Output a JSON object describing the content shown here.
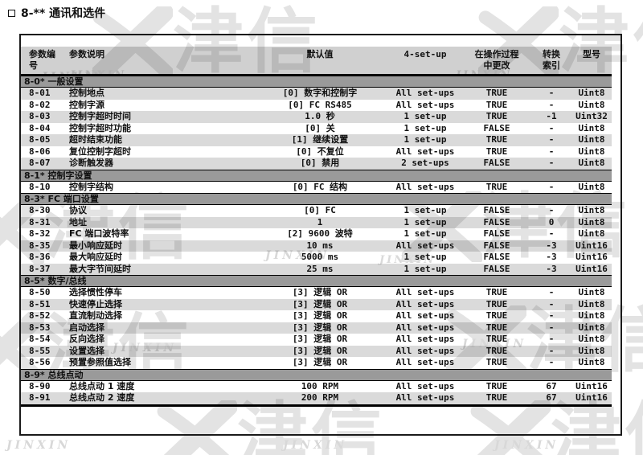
{
  "page_title": {
    "text": "8-** 通讯和选件"
  },
  "watermark": {
    "cjk": "津信",
    "latin": "JINXIN",
    "logo": "jinxin-x-logo"
  },
  "colors": {
    "section_header_bg": "#9a9a9a",
    "column_header_bg": "#cccccc",
    "row_shaded_bg": "#dadada",
    "border": "#000000",
    "watermark": "#e3e3e3"
  },
  "table": {
    "columns": [
      {
        "label": "参数编\n号"
      },
      {
        "label": "参数说明"
      },
      {
        "label": "默认值"
      },
      {
        "label": "4-set-up"
      },
      {
        "label": "在操作过程\n中更改"
      },
      {
        "label": "转换\n索引"
      },
      {
        "label": "型号"
      }
    ],
    "sections": [
      {
        "title": "8-0* 一般设置",
        "rows": [
          {
            "num": "8-01",
            "desc": "控制地点",
            "default": "[0] 数字和控制字",
            "setup": "All set-ups",
            "change": "TRUE",
            "conv": "-",
            "type": "Uint8",
            "shaded": true
          },
          {
            "num": "8-02",
            "desc": "控制字源",
            "default": "[0] FC RS485",
            "setup": "All set-ups",
            "change": "TRUE",
            "conv": "-",
            "type": "Uint8",
            "shaded": false
          },
          {
            "num": "8-03",
            "desc": "控制字超时时间",
            "default": "1.0 秒",
            "setup": "1 set-up",
            "change": "TRUE",
            "conv": "-1",
            "type": "Uint32",
            "shaded": true
          },
          {
            "num": "8-04",
            "desc": "控制字超时功能",
            "default": "[0] 关",
            "setup": "1 set-up",
            "change": "FALSE",
            "conv": "-",
            "type": "Uint8",
            "shaded": false
          },
          {
            "num": "8-05",
            "desc": "超时结束功能",
            "default": "[1] 继续设置",
            "setup": "1 set-up",
            "change": "TRUE",
            "conv": "-",
            "type": "Uint8",
            "shaded": true
          },
          {
            "num": "8-06",
            "desc": "复位控制字超时",
            "default": "[0] 不复位",
            "setup": "All set-ups",
            "change": "TRUE",
            "conv": "-",
            "type": "Uint8",
            "shaded": false
          },
          {
            "num": "8-07",
            "desc": "诊断触发器",
            "default": "[0] 禁用",
            "setup": "2 set-ups",
            "change": "FALSE",
            "conv": "-",
            "type": "Uint8",
            "shaded": true
          }
        ]
      },
      {
        "title": "8-1* 控制字设置",
        "rows": [
          {
            "num": "8-10",
            "desc": "控制字结构",
            "default": "[0] FC 结构",
            "setup": "All set-ups",
            "change": "TRUE",
            "conv": "-",
            "type": "Uint8",
            "shaded": false
          }
        ]
      },
      {
        "title": "8-3* FC 端口设置",
        "rows": [
          {
            "num": "8-30",
            "desc": "协议",
            "default": "[0] FC",
            "setup": "1 set-up",
            "change": "FALSE",
            "conv": "-",
            "type": "Uint8",
            "shaded": false
          },
          {
            "num": "8-31",
            "desc": "地址",
            "default": "1",
            "setup": "1 set-up",
            "change": "FALSE",
            "conv": "0",
            "type": "Uint8",
            "shaded": true
          },
          {
            "num": "8-32",
            "desc": "FC 端口波特率",
            "default": "[2] 9600 波特",
            "setup": "1 set-up",
            "change": "FALSE",
            "conv": "-",
            "type": "Uint8",
            "shaded": false
          },
          {
            "num": "8-35",
            "desc": "最小响应延时",
            "default": "10 ms",
            "setup": "All set-ups",
            "change": "FALSE",
            "conv": "-3",
            "type": "Uint16",
            "shaded": true
          },
          {
            "num": "8-36",
            "desc": "最大响应延时",
            "default": "5000 ms",
            "setup": "1 set-up",
            "change": "FALSE",
            "conv": "-3",
            "type": "Uint16",
            "shaded": false
          },
          {
            "num": "8-37",
            "desc": "最大字节间延时",
            "default": "25 ms",
            "setup": "1 set-up",
            "change": "FALSE",
            "conv": "-3",
            "type": "Uint16",
            "shaded": true
          }
        ]
      },
      {
        "title": "8-5* 数字/总线",
        "rows": [
          {
            "num": "8-50",
            "desc": "选择惯性停车",
            "default": "[3] 逻辑 OR",
            "setup": "All set-ups",
            "change": "TRUE",
            "conv": "-",
            "type": "Uint8",
            "shaded": false
          },
          {
            "num": "8-51",
            "desc": "快速停止选择",
            "default": "[3] 逻辑 OR",
            "setup": "All set-ups",
            "change": "TRUE",
            "conv": "-",
            "type": "Uint8",
            "shaded": true
          },
          {
            "num": "8-52",
            "desc": "直流制动选择",
            "default": "[3] 逻辑 OR",
            "setup": "All set-ups",
            "change": "TRUE",
            "conv": "-",
            "type": "Uint8",
            "shaded": false
          },
          {
            "num": "8-53",
            "desc": "启动选择",
            "default": "[3] 逻辑 OR",
            "setup": "All set-ups",
            "change": "TRUE",
            "conv": "-",
            "type": "Uint8",
            "shaded": true
          },
          {
            "num": "8-54",
            "desc": "反向选择",
            "default": "[3] 逻辑 OR",
            "setup": "All set-ups",
            "change": "TRUE",
            "conv": "-",
            "type": "Uint8",
            "shaded": false
          },
          {
            "num": "8-55",
            "desc": "设置选择",
            "default": "[3] 逻辑 OR",
            "setup": "All set-ups",
            "change": "TRUE",
            "conv": "-",
            "type": "Uint8",
            "shaded": true
          },
          {
            "num": "8-56",
            "desc": "预置参照值选择",
            "default": "[3] 逻辑 OR",
            "setup": "All set-ups",
            "change": "TRUE",
            "conv": "-",
            "type": "Uint8",
            "shaded": false
          }
        ]
      },
      {
        "title": "8-9* 总线点动",
        "rows": [
          {
            "num": "8-90",
            "desc": "总线点动 1 速度",
            "default": "100 RPM",
            "setup": "All set-ups",
            "change": "TRUE",
            "conv": "67",
            "type": "Uint16",
            "shaded": false
          },
          {
            "num": "8-91",
            "desc": "总线点动 2 速度",
            "default": "200 RPM",
            "setup": "All set-ups",
            "change": "TRUE",
            "conv": "67",
            "type": "Uint16",
            "shaded": true
          }
        ]
      }
    ]
  }
}
